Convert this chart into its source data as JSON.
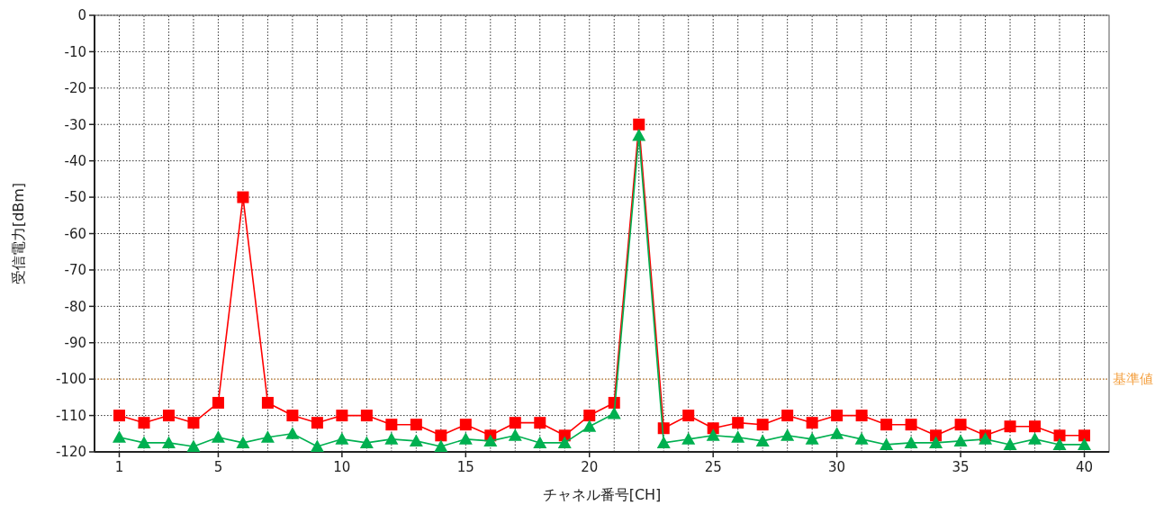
{
  "chart_data": {
    "type": "line",
    "xlabel": "チャネル番号[CH]",
    "ylabel": "受信電力[dBm]",
    "x": [
      1,
      2,
      3,
      4,
      5,
      6,
      7,
      8,
      9,
      10,
      11,
      12,
      13,
      14,
      15,
      16,
      17,
      18,
      19,
      20,
      21,
      22,
      23,
      24,
      25,
      26,
      27,
      28,
      29,
      30,
      31,
      32,
      33,
      34,
      35,
      36,
      37,
      38,
      39,
      40
    ],
    "series": [
      {
        "color": "#ff0000",
        "marker": "square",
        "values": [
          -110,
          -112,
          -110,
          -112,
          -106.5,
          -50,
          -106.5,
          -110,
          -112,
          -110,
          -110,
          -112.5,
          -112.5,
          -115.5,
          -112.5,
          -115.5,
          -112,
          -112,
          -115.5,
          -110,
          -106.5,
          -30,
          -113.5,
          -110,
          -113.5,
          -112,
          -112.5,
          -110,
          -112,
          -110,
          -110,
          -112.5,
          -112.5,
          -115.5,
          -112.5,
          -115.5,
          -113,
          -113,
          -115.5,
          -115.5
        ]
      },
      {
        "color": "#00b050",
        "marker": "triangle",
        "values": [
          -116,
          -117.5,
          -117.5,
          -118.5,
          -116,
          -117.5,
          -116,
          -115,
          -118.5,
          -116.5,
          -117.5,
          -116.5,
          -117,
          -118.5,
          -116.5,
          -117,
          -115.5,
          -117.5,
          -117.5,
          -113,
          -109.5,
          -33,
          -117.5,
          -116.5,
          -115.5,
          -116,
          -117,
          -115.5,
          -116.5,
          -115,
          -116.5,
          -118,
          -117.5,
          -117.5,
          -117,
          -116.5,
          -118,
          -116.5,
          -118,
          -118
        ]
      }
    ],
    "xlim": [
      0,
      41
    ],
    "xticks": [
      1,
      {
        "value": 2,
        "label": null
      },
      {
        "value": 3,
        "label": null
      },
      {
        "value": 4,
        "label": null
      },
      5,
      {
        "value": 6,
        "label": null
      },
      {
        "value": 7,
        "label": null
      },
      {
        "value": 8,
        "label": null
      },
      {
        "value": 9,
        "label": null
      },
      10,
      {
        "value": 11,
        "label": null
      },
      {
        "value": 12,
        "label": null
      },
      {
        "value": 13,
        "label": null
      },
      {
        "value": 14,
        "label": null
      },
      15,
      {
        "value": 16,
        "label": null
      },
      {
        "value": 17,
        "label": null
      },
      {
        "value": 18,
        "label": null
      },
      {
        "value": 19,
        "label": null
      },
      20,
      {
        "value": 21,
        "label": null
      },
      {
        "value": 22,
        "label": null
      },
      {
        "value": 23,
        "label": null
      },
      {
        "value": 24,
        "label": null
      },
      25,
      {
        "value": 26,
        "label": null
      },
      {
        "value": 27,
        "label": null
      },
      {
        "value": 28,
        "label": null
      },
      {
        "value": 29,
        "label": null
      },
      30,
      {
        "value": 31,
        "label": null
      },
      {
        "value": 32,
        "label": null
      },
      {
        "value": 33,
        "label": null
      },
      {
        "value": 34,
        "label": null
      },
      35,
      {
        "value": 36,
        "label": null
      },
      {
        "value": 37,
        "label": null
      },
      {
        "value": 38,
        "label": null
      },
      {
        "value": 39,
        "label": null
      },
      40
    ],
    "ylim": [
      -120,
      0
    ],
    "yticks": [
      -120,
      -110,
      -100,
      -90,
      -80,
      -70,
      -60,
      -50,
      -40,
      -30,
      -20,
      -10,
      0
    ],
    "grid": true,
    "line_style": "solid",
    "ref_lines": [
      {
        "axis": "y",
        "value": -100,
        "label": "基準値",
        "color": "#f4a040",
        "line_style": "dotted"
      }
    ]
  }
}
